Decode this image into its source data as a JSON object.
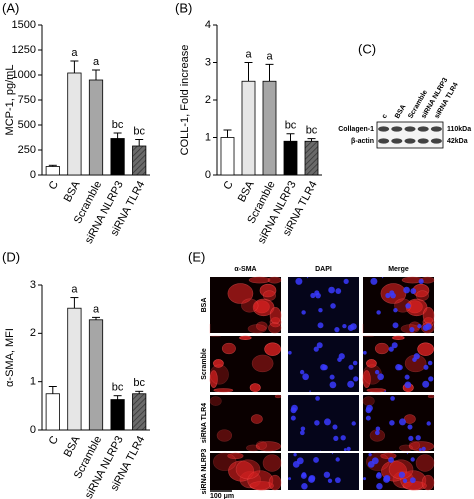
{
  "chart_data": [
    {
      "type": "bar",
      "panel_label": "(A)",
      "y_label": "MCP-1, pg/mL",
      "categories": [
        "C",
        "BSA",
        "Scramble",
        "siRNA NLRP3",
        "siRNA TLR4"
      ],
      "values": [
        85,
        1020,
        950,
        365,
        290
      ],
      "errors": [
        12,
        120,
        100,
        55,
        65
      ],
      "annotations": [
        null,
        "a",
        "a",
        "bc",
        "bc"
      ],
      "colors": [
        "#ffffff",
        "#e6e6e6",
        "#a6a6a6",
        "#000000",
        "#6a6a6a"
      ],
      "hatch": [
        false,
        false,
        false,
        false,
        true
      ],
      "ylim": [
        0,
        1500
      ],
      "yticks": [
        0,
        250,
        500,
        750,
        1000,
        1250,
        1500
      ]
    },
    {
      "type": "bar",
      "panel_label": "(B)",
      "y_label": "COLL-1, Fold increase",
      "categories": [
        "C",
        "BSA",
        "Scramble",
        "siRNA NLRP3",
        "siRNA TLR4"
      ],
      "values": [
        1.0,
        2.5,
        2.5,
        0.9,
        0.9
      ],
      "errors": [
        0.2,
        0.5,
        0.45,
        0.2,
        0.07
      ],
      "annotations": [
        null,
        "a",
        "a",
        "bc",
        "bc"
      ],
      "colors": [
        "#ffffff",
        "#e6e6e6",
        "#a6a6a6",
        "#000000",
        "#6a6a6a"
      ],
      "hatch": [
        false,
        false,
        false,
        false,
        true
      ],
      "ylim": [
        0,
        4
      ],
      "yticks": [
        0,
        1,
        2,
        3,
        4
      ]
    },
    {
      "type": "bar",
      "panel_label": "(D)",
      "y_label": "α-SMA, MFI",
      "categories": [
        "C",
        "BSA",
        "Scramble",
        "siRNA NLRP3",
        "siRNA TLR4"
      ],
      "values": [
        0.75,
        2.52,
        2.28,
        0.63,
        0.75
      ],
      "errors": [
        0.15,
        0.22,
        0.05,
        0.08,
        0.05
      ],
      "annotations": [
        null,
        "a",
        "a",
        "bc",
        "bc"
      ],
      "colors": [
        "#ffffff",
        "#e6e6e6",
        "#a6a6a6",
        "#000000",
        "#6a6a6a"
      ],
      "hatch": [
        false,
        false,
        false,
        false,
        true
      ],
      "ylim": [
        0,
        3
      ],
      "yticks": [
        0,
        1,
        2,
        3
      ]
    }
  ],
  "blot": {
    "panel_label": "(C)",
    "lanes": [
      "c",
      "BSA",
      "Scramble",
      "siRNA NLRP3",
      "siRNA TLR4"
    ],
    "rows": [
      "Collagen-1",
      "β-actin"
    ],
    "sizes": [
      "110kDa",
      "42kDa"
    ]
  },
  "micrograph": {
    "panel_label": "(E)",
    "columns": [
      "α-SMA",
      "DAPI",
      "Merge"
    ],
    "rows": [
      "BSA",
      "Scramble",
      "siRNA TLR4",
      "siRNA NLRP3"
    ],
    "scale_bar": "100 μm"
  }
}
